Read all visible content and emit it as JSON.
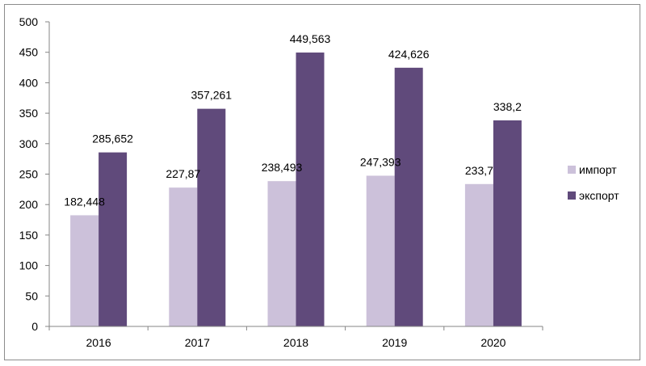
{
  "chart_data": {
    "type": "bar",
    "title": "",
    "xlabel": "",
    "ylabel": "",
    "categories": [
      "2016",
      "2017",
      "2018",
      "2019",
      "2020"
    ],
    "ylim": [
      0,
      500
    ],
    "yticks": [
      0,
      50,
      100,
      150,
      200,
      250,
      300,
      350,
      400,
      450,
      500
    ],
    "grid": false,
    "legend_position": "right",
    "series": [
      {
        "name": "импорт",
        "color": "#ccc1da",
        "values": [
          182.448,
          227.87,
          238.493,
          247.393,
          233.7
        ],
        "labels": [
          "182,448",
          "227,87",
          "238,493",
          "247,393",
          "233,7"
        ]
      },
      {
        "name": "экспорт",
        "color": "#604a7b",
        "values": [
          285.652,
          357.261,
          449.563,
          424.626,
          338.2
        ],
        "labels": [
          "285,652",
          "357,261",
          "449,563",
          "424,626",
          "338,2"
        ]
      }
    ]
  }
}
